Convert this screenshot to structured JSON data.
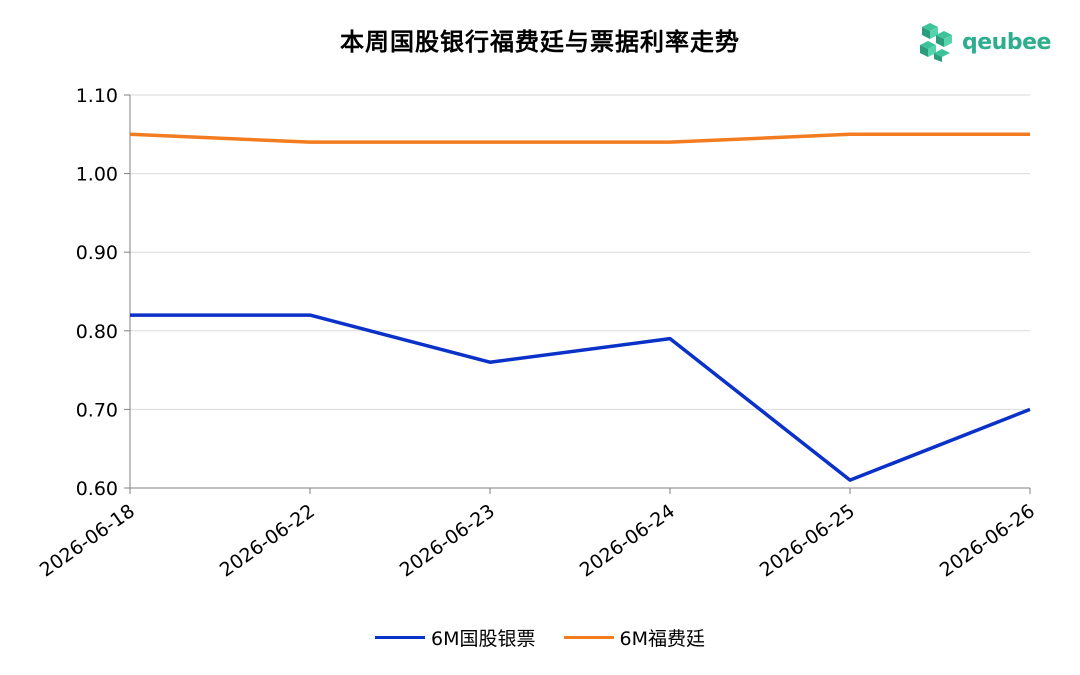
{
  "chart_data": {
    "type": "line",
    "title": "本周国股银行福费廷与票据利率走势",
    "x": [
      "2026-06-18",
      "2026-06-22",
      "2026-06-23",
      "2026-06-24",
      "2026-06-25",
      "2026-06-26"
    ],
    "series": [
      {
        "name": "6M国股银票",
        "values": [
          0.82,
          0.82,
          0.76,
          0.79,
          0.61,
          0.7
        ],
        "color": "#0a32c8"
      },
      {
        "name": "6M福费廷",
        "values": [
          1.05,
          1.04,
          1.04,
          1.04,
          1.05,
          1.05
        ],
        "color": "#f47c20"
      }
    ],
    "yticks": [
      "0.60",
      "0.70",
      "0.80",
      "0.90",
      "1.00",
      "1.10"
    ],
    "ylim": [
      0.6,
      1.1
    ],
    "grid": true,
    "legend": "bottom"
  },
  "logo": {
    "text": "qeubee",
    "color": "#2fae8f"
  }
}
